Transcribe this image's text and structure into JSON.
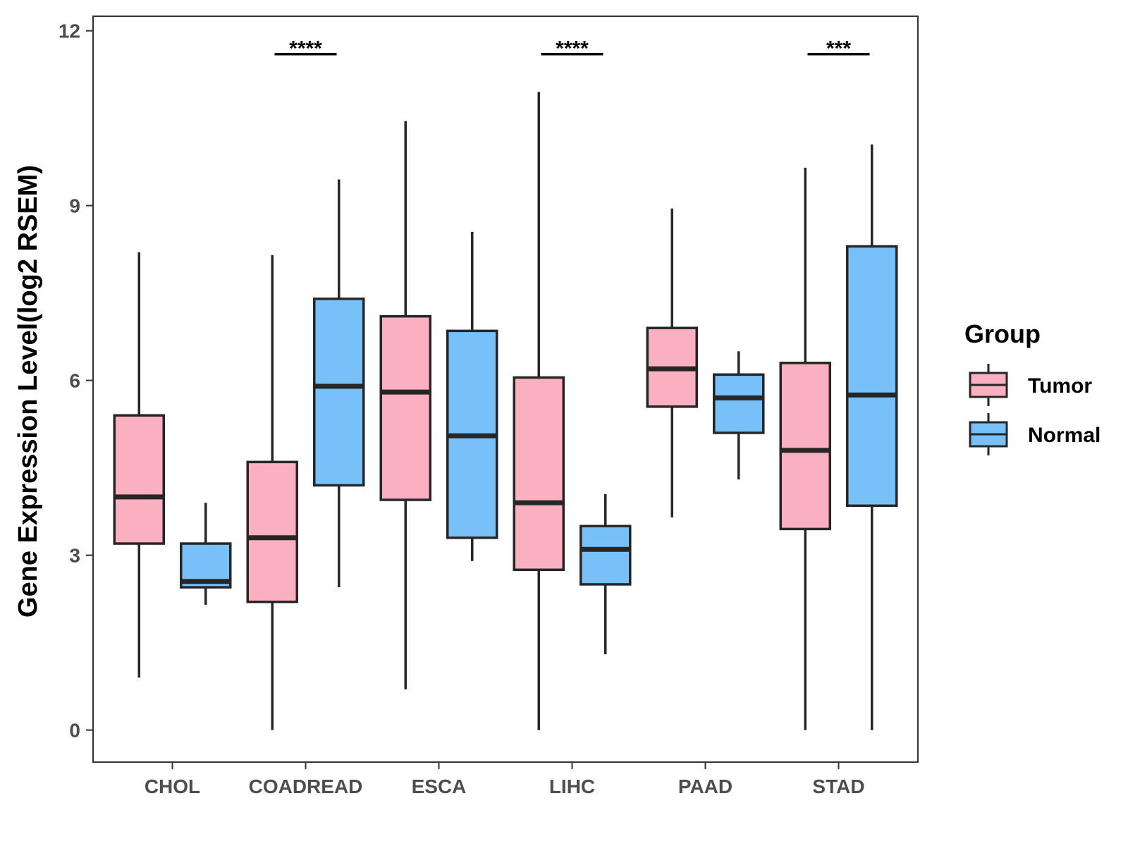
{
  "chart_data": {
    "type": "boxplot",
    "title": "",
    "xlabel": "",
    "ylabel": "Gene Expression Level(log2 RSEM)",
    "ylim": [
      -0.55,
      12.25
    ],
    "yticks": [
      0,
      3,
      6,
      9,
      12
    ],
    "grid": false,
    "legend_position": "right",
    "categories": [
      "CHOL",
      "COADREAD",
      "ESCA",
      "LIHC",
      "PAAD",
      "STAD"
    ],
    "series": [
      {
        "name": "Tumor",
        "color": "#FBB0C1",
        "boxes": [
          {
            "whisker_low": 0.9,
            "q1": 3.2,
            "median": 4.0,
            "q3": 5.4,
            "whisker_high": 8.2
          },
          {
            "whisker_low": 0.0,
            "q1": 2.2,
            "median": 3.3,
            "q3": 4.6,
            "whisker_high": 8.15
          },
          {
            "whisker_low": 0.7,
            "q1": 3.95,
            "median": 5.8,
            "q3": 7.1,
            "whisker_high": 10.45
          },
          {
            "whisker_low": 0.0,
            "q1": 2.75,
            "median": 3.9,
            "q3": 6.05,
            "whisker_high": 10.95
          },
          {
            "whisker_low": 3.65,
            "q1": 5.55,
            "median": 6.2,
            "q3": 6.9,
            "whisker_high": 8.95
          },
          {
            "whisker_low": 0.0,
            "q1": 3.45,
            "median": 4.8,
            "q3": 6.3,
            "whisker_high": 9.65
          }
        ]
      },
      {
        "name": "Normal",
        "color": "#77C0F8",
        "boxes": [
          {
            "whisker_low": 2.15,
            "q1": 2.45,
            "median": 2.55,
            "q3": 3.2,
            "whisker_high": 3.9
          },
          {
            "whisker_low": 2.45,
            "q1": 4.2,
            "median": 5.9,
            "q3": 7.4,
            "whisker_high": 9.45
          },
          {
            "whisker_low": 2.9,
            "q1": 3.3,
            "median": 5.05,
            "q3": 6.85,
            "whisker_high": 8.55
          },
          {
            "whisker_low": 1.3,
            "q1": 2.5,
            "median": 3.1,
            "q3": 3.5,
            "whisker_high": 4.05
          },
          {
            "whisker_low": 4.3,
            "q1": 5.1,
            "median": 5.7,
            "q3": 6.1,
            "whisker_high": 6.5
          },
          {
            "whisker_low": 0.0,
            "q1": 3.85,
            "median": 5.75,
            "q3": 8.3,
            "whisker_high": 10.05
          }
        ]
      }
    ],
    "significance": [
      {
        "category": "COADREAD",
        "label": "****",
        "y": 11.6
      },
      {
        "category": "LIHC",
        "label": "****",
        "y": 11.6
      },
      {
        "category": "STAD",
        "label": "***",
        "y": 11.6
      }
    ],
    "legend": {
      "title": "Group",
      "items": [
        "Tumor",
        "Normal"
      ]
    }
  }
}
